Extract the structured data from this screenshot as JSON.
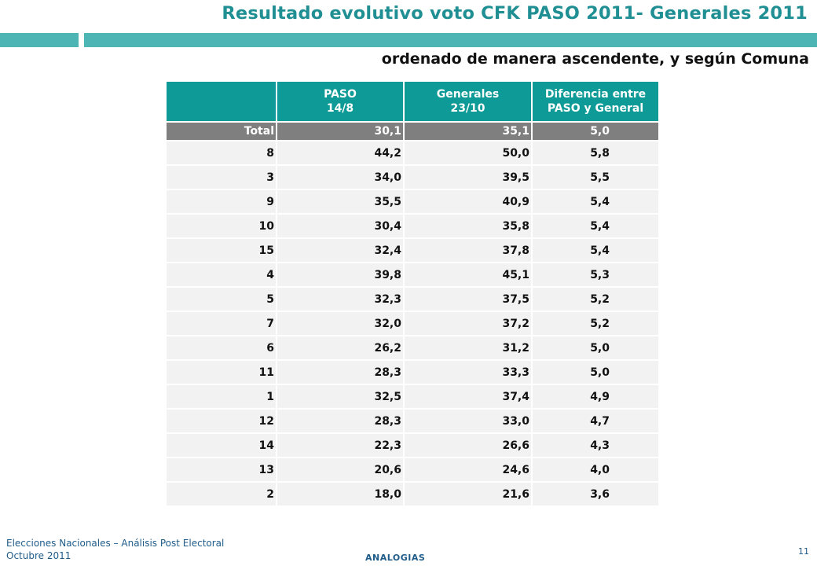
{
  "header": {
    "title": "Resultado evolutivo voto CFK PASO 2011- Generales 2011",
    "subtitle": "ordenado de manera ascendente, y según Comuna",
    "accent_color": "#4db6b4",
    "title_color": "#1f8f93"
  },
  "table": {
    "columns": [
      {
        "line1": "",
        "line2": ""
      },
      {
        "line1": "PASO",
        "line2": "14/8"
      },
      {
        "line1": "Generales",
        "line2": "23/10"
      },
      {
        "line1": "Diferencia entre",
        "line2": "PASO y General"
      }
    ],
    "total": {
      "label": "Total",
      "paso": "30,1",
      "generales": "35,1",
      "diferencia": "5,0"
    },
    "rows": [
      {
        "comuna": "8",
        "paso": "44,2",
        "generales": "50,0",
        "diferencia": "5,8"
      },
      {
        "comuna": "3",
        "paso": "34,0",
        "generales": "39,5",
        "diferencia": "5,5"
      },
      {
        "comuna": "9",
        "paso": "35,5",
        "generales": "40,9",
        "diferencia": "5,4"
      },
      {
        "comuna": "10",
        "paso": "30,4",
        "generales": "35,8",
        "diferencia": "5,4"
      },
      {
        "comuna": "15",
        "paso": "32,4",
        "generales": "37,8",
        "diferencia": "5,4"
      },
      {
        "comuna": "4",
        "paso": "39,8",
        "generales": "45,1",
        "diferencia": "5,3"
      },
      {
        "comuna": "5",
        "paso": "32,3",
        "generales": "37,5",
        "diferencia": "5,2"
      },
      {
        "comuna": "7",
        "paso": "32,0",
        "generales": "37,2",
        "diferencia": "5,2"
      },
      {
        "comuna": "6",
        "paso": "26,2",
        "generales": "31,2",
        "diferencia": "5,0"
      },
      {
        "comuna": "11",
        "paso": "28,3",
        "generales": "33,3",
        "diferencia": "5,0"
      },
      {
        "comuna": "1",
        "paso": "32,5",
        "generales": "37,4",
        "diferencia": "4,9"
      },
      {
        "comuna": "12",
        "paso": "28,3",
        "generales": "33,0",
        "diferencia": "4,7"
      },
      {
        "comuna": "14",
        "paso": "22,3",
        "generales": "26,6",
        "diferencia": "4,3"
      },
      {
        "comuna": "13",
        "paso": "20,6",
        "generales": "24,6",
        "diferencia": "4,0"
      },
      {
        "comuna": "2",
        "paso": "18,0",
        "generales": "21,6",
        "diferencia": "3,6"
      }
    ]
  },
  "footer": {
    "line1": "Elecciones Nacionales – Análisis Post Electoral",
    "line2": "Octubre 2011",
    "brand": "ANALOGIAS",
    "page_number": "11"
  }
}
